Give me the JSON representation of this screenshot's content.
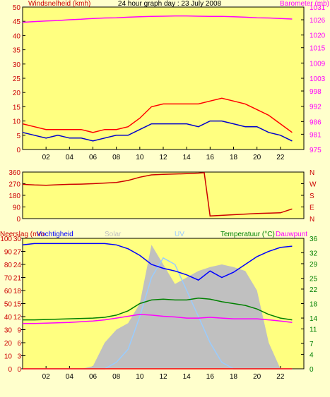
{
  "chart_data": [
    {
      "type": "line",
      "title": "24 hour graph day : 23 July 2008",
      "y_label": "Windsnelheid (kmh)",
      "y2_label": "Barometer (mb)",
      "x": [
        0,
        1,
        2,
        3,
        4,
        5,
        6,
        7,
        8,
        9,
        10,
        11,
        12,
        13,
        14,
        15,
        16,
        17,
        18,
        19,
        20,
        21,
        22,
        23
      ],
      "xlim": [
        0,
        24
      ],
      "xticks": [
        {
          "value": 2,
          "label": "02"
        },
        {
          "value": 4,
          "label": "04"
        },
        {
          "value": 6,
          "label": "06"
        },
        {
          "value": 8,
          "label": "08"
        },
        {
          "value": 10,
          "label": "10"
        },
        {
          "value": 12,
          "label": "12"
        },
        {
          "value": 14,
          "label": "14"
        },
        {
          "value": 16,
          "label": "16"
        },
        {
          "value": 18,
          "label": "18"
        },
        {
          "value": 20,
          "label": "20"
        },
        {
          "value": 22,
          "label": "22"
        }
      ],
      "ylim": [
        0,
        50
      ],
      "yticks": [
        0,
        5,
        10,
        15,
        20,
        25,
        30,
        35,
        40,
        45,
        50
      ],
      "y2lim": [
        975,
        1031
      ],
      "y2ticks": [
        975,
        981,
        986,
        992,
        998,
        1003,
        1009,
        1015,
        1020,
        1026,
        1031
      ],
      "series": [
        {
          "color": "#ff0000",
          "values": [
            9,
            8,
            7,
            7,
            7,
            7,
            6,
            7,
            7,
            8,
            11,
            15,
            16,
            16,
            16,
            16,
            17,
            18,
            17,
            16,
            14,
            12,
            9,
            6
          ]
        },
        {
          "color": "#0000cc",
          "values": [
            6,
            5,
            4,
            5,
            4,
            4,
            3,
            4,
            5,
            5,
            7,
            9,
            9,
            9,
            9,
            8,
            10,
            10,
            9,
            8,
            8,
            6,
            5,
            3
          ]
        },
        {
          "color": "#ff00ff",
          "axis": "y2",
          "values": [
            1025,
            1025.3,
            1025.5,
            1025.7,
            1026,
            1026.2,
            1026.5,
            1026.7,
            1026.8,
            1027,
            1027.2,
            1027.3,
            1027.4,
            1027.5,
            1027.5,
            1027.4,
            1027.3,
            1027.3,
            1027.2,
            1027,
            1026.8,
            1026.7,
            1026.5,
            1026.3
          ]
        }
      ]
    },
    {
      "type": "line",
      "x": [
        0,
        1,
        2,
        3,
        4,
        5,
        6,
        7,
        8,
        9,
        10,
        11,
        12,
        13,
        14,
        15,
        15.5,
        16,
        17,
        18,
        19,
        20,
        21,
        22,
        23
      ],
      "xlim": [
        0,
        24
      ],
      "ylim": [
        0,
        360
      ],
      "yticks": [
        0,
        90,
        180,
        270,
        360
      ],
      "y2lim": [
        0,
        360
      ],
      "y2ticks": [
        {
          "value": 360,
          "label": "N"
        },
        {
          "value": 270,
          "label": "W"
        },
        {
          "value": 180,
          "label": "S"
        },
        {
          "value": 90,
          "label": "E"
        },
        {
          "value": 0,
          "label": "N"
        }
      ],
      "series": [
        {
          "color": "#cc0000",
          "values": [
            265,
            260,
            258,
            262,
            265,
            267,
            270,
            275,
            280,
            295,
            320,
            338,
            342,
            345,
            348,
            352,
            355,
            20,
            25,
            30,
            35,
            40,
            42,
            45,
            75
          ]
        }
      ]
    },
    {
      "type": "line",
      "y3_label": "Neerslag (mm",
      "x": [
        0,
        1,
        2,
        3,
        4,
        5,
        6,
        7,
        8,
        9,
        10,
        11,
        12,
        13,
        14,
        15,
        16,
        17,
        18,
        19,
        20,
        21,
        22,
        23
      ],
      "xlim": [
        0,
        24
      ],
      "xticks": [
        {
          "value": 2,
          "label": "02"
        },
        {
          "value": 4,
          "label": "04"
        },
        {
          "value": 6,
          "label": "06"
        },
        {
          "value": 8,
          "label": "08"
        },
        {
          "value": 10,
          "label": "10"
        },
        {
          "value": 12,
          "label": "12"
        },
        {
          "value": 14,
          "label": "14"
        },
        {
          "value": 16,
          "label": "16"
        },
        {
          "value": 18,
          "label": "18"
        },
        {
          "value": 20,
          "label": "20"
        },
        {
          "value": 22,
          "label": "22"
        }
      ],
      "ylim": [
        0,
        100
      ],
      "yticks": [
        0,
        10,
        20,
        30,
        40,
        50,
        60,
        70,
        80,
        90,
        100
      ],
      "y3lim": [
        0,
        30
      ],
      "y3ticks": [
        0,
        3,
        6,
        9,
        12,
        15,
        18,
        21,
        24,
        27,
        30
      ],
      "y2lim": [
        0,
        36
      ],
      "y2ticks": [
        0,
        4,
        7,
        11,
        14,
        18,
        22,
        25,
        29,
        32,
        36
      ],
      "series": [
        {
          "name": "Solar",
          "color": "#c0c0c0",
          "fill": true,
          "values": [
            0,
            0,
            0,
            0,
            0,
            0,
            2,
            20,
            30,
            35,
            50,
            95,
            80,
            65,
            70,
            75,
            78,
            80,
            78,
            75,
            60,
            20,
            0,
            0
          ]
        },
        {
          "name": "UV",
          "color": "#99ccff",
          "values": [
            0,
            0,
            0,
            0,
            0,
            0,
            0,
            0,
            5,
            15,
            40,
            70,
            85,
            80,
            60,
            40,
            20,
            5,
            0,
            0,
            0,
            0,
            0,
            0
          ]
        },
        {
          "name": "Vochtigheid",
          "color": "#0000ff",
          "values": [
            95,
            96,
            96,
            96,
            96,
            96,
            96,
            96,
            95,
            92,
            87,
            80,
            77,
            75,
            72,
            68,
            75,
            70,
            74,
            80,
            86,
            90,
            93,
            94
          ]
        },
        {
          "name": "Temperatuur (°C)",
          "color": "#008000",
          "axis": "y2",
          "values": [
            13.5,
            13.5,
            13.6,
            13.7,
            13.8,
            13.9,
            14,
            14.2,
            14.8,
            16,
            18,
            19,
            19.2,
            19,
            19,
            19.5,
            19.2,
            18.5,
            18,
            17.5,
            16.5,
            15,
            14,
            13.5
          ]
        },
        {
          "name": "Dauwpunt",
          "color": "#ff00ff",
          "axis": "y2",
          "values": [
            12.5,
            12.5,
            12.6,
            12.7,
            12.8,
            13,
            13.2,
            13.5,
            14,
            14.5,
            15,
            14.8,
            14.5,
            14.3,
            14,
            14,
            14.2,
            14,
            13.8,
            13.8,
            13.8,
            13.5,
            13.2,
            12.8
          ]
        },
        {
          "color": "#ff0000",
          "axis": "y3",
          "values": [
            0,
            0,
            0,
            0,
            0,
            0,
            0,
            0,
            0,
            0,
            0,
            0,
            0,
            0,
            0,
            0,
            0,
            0,
            0,
            0,
            0,
            0,
            0,
            0
          ]
        }
      ]
    }
  ]
}
